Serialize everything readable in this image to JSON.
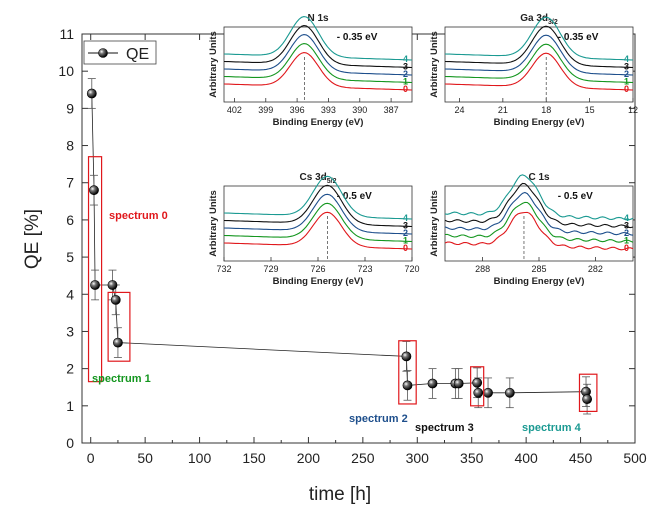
{
  "chart_data": [
    {
      "type": "scatter",
      "xlabel": "time [h]",
      "ylabel": "QE [%]",
      "xlim": [
        -8,
        500
      ],
      "ylim": [
        0,
        11
      ],
      "xticks": [
        "0",
        "50",
        "100",
        "150",
        "200",
        "250",
        "300",
        "350",
        "400",
        "450",
        "500"
      ],
      "yticks": [
        "0",
        "1",
        "2",
        "3",
        "4",
        "5",
        "6",
        "7",
        "8",
        "9",
        "10",
        "11"
      ],
      "legend": {
        "label": "QE",
        "position": "top-left"
      },
      "series": [
        {
          "name": "QE",
          "x": [
            1,
            3,
            4,
            20,
            23,
            25,
            290,
            291,
            314,
            335,
            338,
            355,
            356,
            365,
            385,
            455,
            456
          ],
          "y": [
            9.4,
            6.8,
            4.25,
            4.25,
            3.85,
            2.7,
            2.33,
            1.55,
            1.6,
            1.6,
            1.6,
            1.62,
            1.35,
            1.35,
            1.35,
            1.38,
            1.18
          ],
          "err": [
            0.4,
            0.4,
            0.4,
            0.4,
            0.4,
            0.4,
            0.4,
            0.4,
            0.4,
            0.4,
            0.4,
            0.4,
            0.4,
            0.4,
            0.4,
            0.4,
            0.4
          ]
        }
      ],
      "annotations": [
        {
          "label": "spectrum 0",
          "color": "#e0181c",
          "box_x": [
            -2,
            10
          ],
          "box_y": [
            1.65,
            7.7
          ]
        },
        {
          "label": "spectrum 1",
          "color": "#14961f",
          "box_x": [
            16,
            36
          ],
          "box_y": [
            2.2,
            4.05
          ]
        },
        {
          "label": "spectrum 2",
          "color": "#1e4f8c",
          "box_x": [
            283,
            299
          ],
          "box_y": [
            1.05,
            2.75
          ]
        },
        {
          "label": "spectrum 3",
          "color": "#111111",
          "box_x": [
            349,
            361
          ],
          "box_y": [
            1.0,
            2.05
          ]
        },
        {
          "label": "spectrum 4",
          "color": "#1b9a92",
          "box_x": [
            449,
            465
          ],
          "box_y": [
            0.85,
            1.85
          ]
        }
      ]
    },
    {
      "type": "line",
      "title": "N 1s",
      "xlabel": "Binding Energy (eV)",
      "ylabel": "Arbitrary Units",
      "xlim": [
        403,
        385
      ],
      "xticks": [
        "402",
        "399",
        "396",
        "393",
        "390",
        "387"
      ],
      "peak": 395.3,
      "shift_label": "- 0.35 eV",
      "curve_labels": [
        "0",
        "1",
        "2",
        "3",
        "4"
      ],
      "series_colors": [
        "#e0181c",
        "#14961f",
        "#1e4f8c",
        "#111111",
        "#1b9a92"
      ]
    },
    {
      "type": "line",
      "title": "Ga 3d3/2",
      "title_main": "Ga 3d",
      "title_sub": "3/2",
      "xlabel": "Binding Energy (eV)",
      "ylabel": "Arbitrary Units",
      "xlim": [
        25,
        12
      ],
      "xticks": [
        "24",
        "21",
        "18",
        "15",
        "12"
      ],
      "peak": 18.0,
      "shift_label": "- 0.35 eV",
      "curve_labels": [
        "0",
        "1",
        "2",
        "3",
        "4"
      ],
      "series_colors": [
        "#e0181c",
        "#14961f",
        "#1e4f8c",
        "#111111",
        "#1b9a92"
      ]
    },
    {
      "type": "line",
      "title": "Cs 3d5/2",
      "title_main": "Cs 3d",
      "title_sub": "5/2",
      "xlabel": "Binding Energy (eV)",
      "ylabel": "Arbitrary Units",
      "xlim": [
        732,
        720
      ],
      "xticks": [
        "732",
        "729",
        "726",
        "723",
        "720"
      ],
      "peak": 725.4,
      "shift_label": "- 0.5 eV",
      "curve_labels": [
        "0",
        "1",
        "2",
        "3",
        "4"
      ],
      "series_colors": [
        "#e0181c",
        "#14961f",
        "#1e4f8c",
        "#111111",
        "#1b9a92"
      ]
    },
    {
      "type": "line",
      "title": "C 1s",
      "xlabel": "Binding Energy (eV)",
      "ylabel": "Arbitrary Units",
      "xlim": [
        290,
        280
      ],
      "xticks": [
        "288",
        "285",
        "282"
      ],
      "peak": 285.8,
      "shift_label": "- 0.5 eV",
      "curve_labels": [
        "0",
        "1",
        "2",
        "3",
        "4"
      ],
      "series_colors": [
        "#e0181c",
        "#14961f",
        "#1e4f8c",
        "#111111",
        "#1b9a92"
      ]
    }
  ]
}
